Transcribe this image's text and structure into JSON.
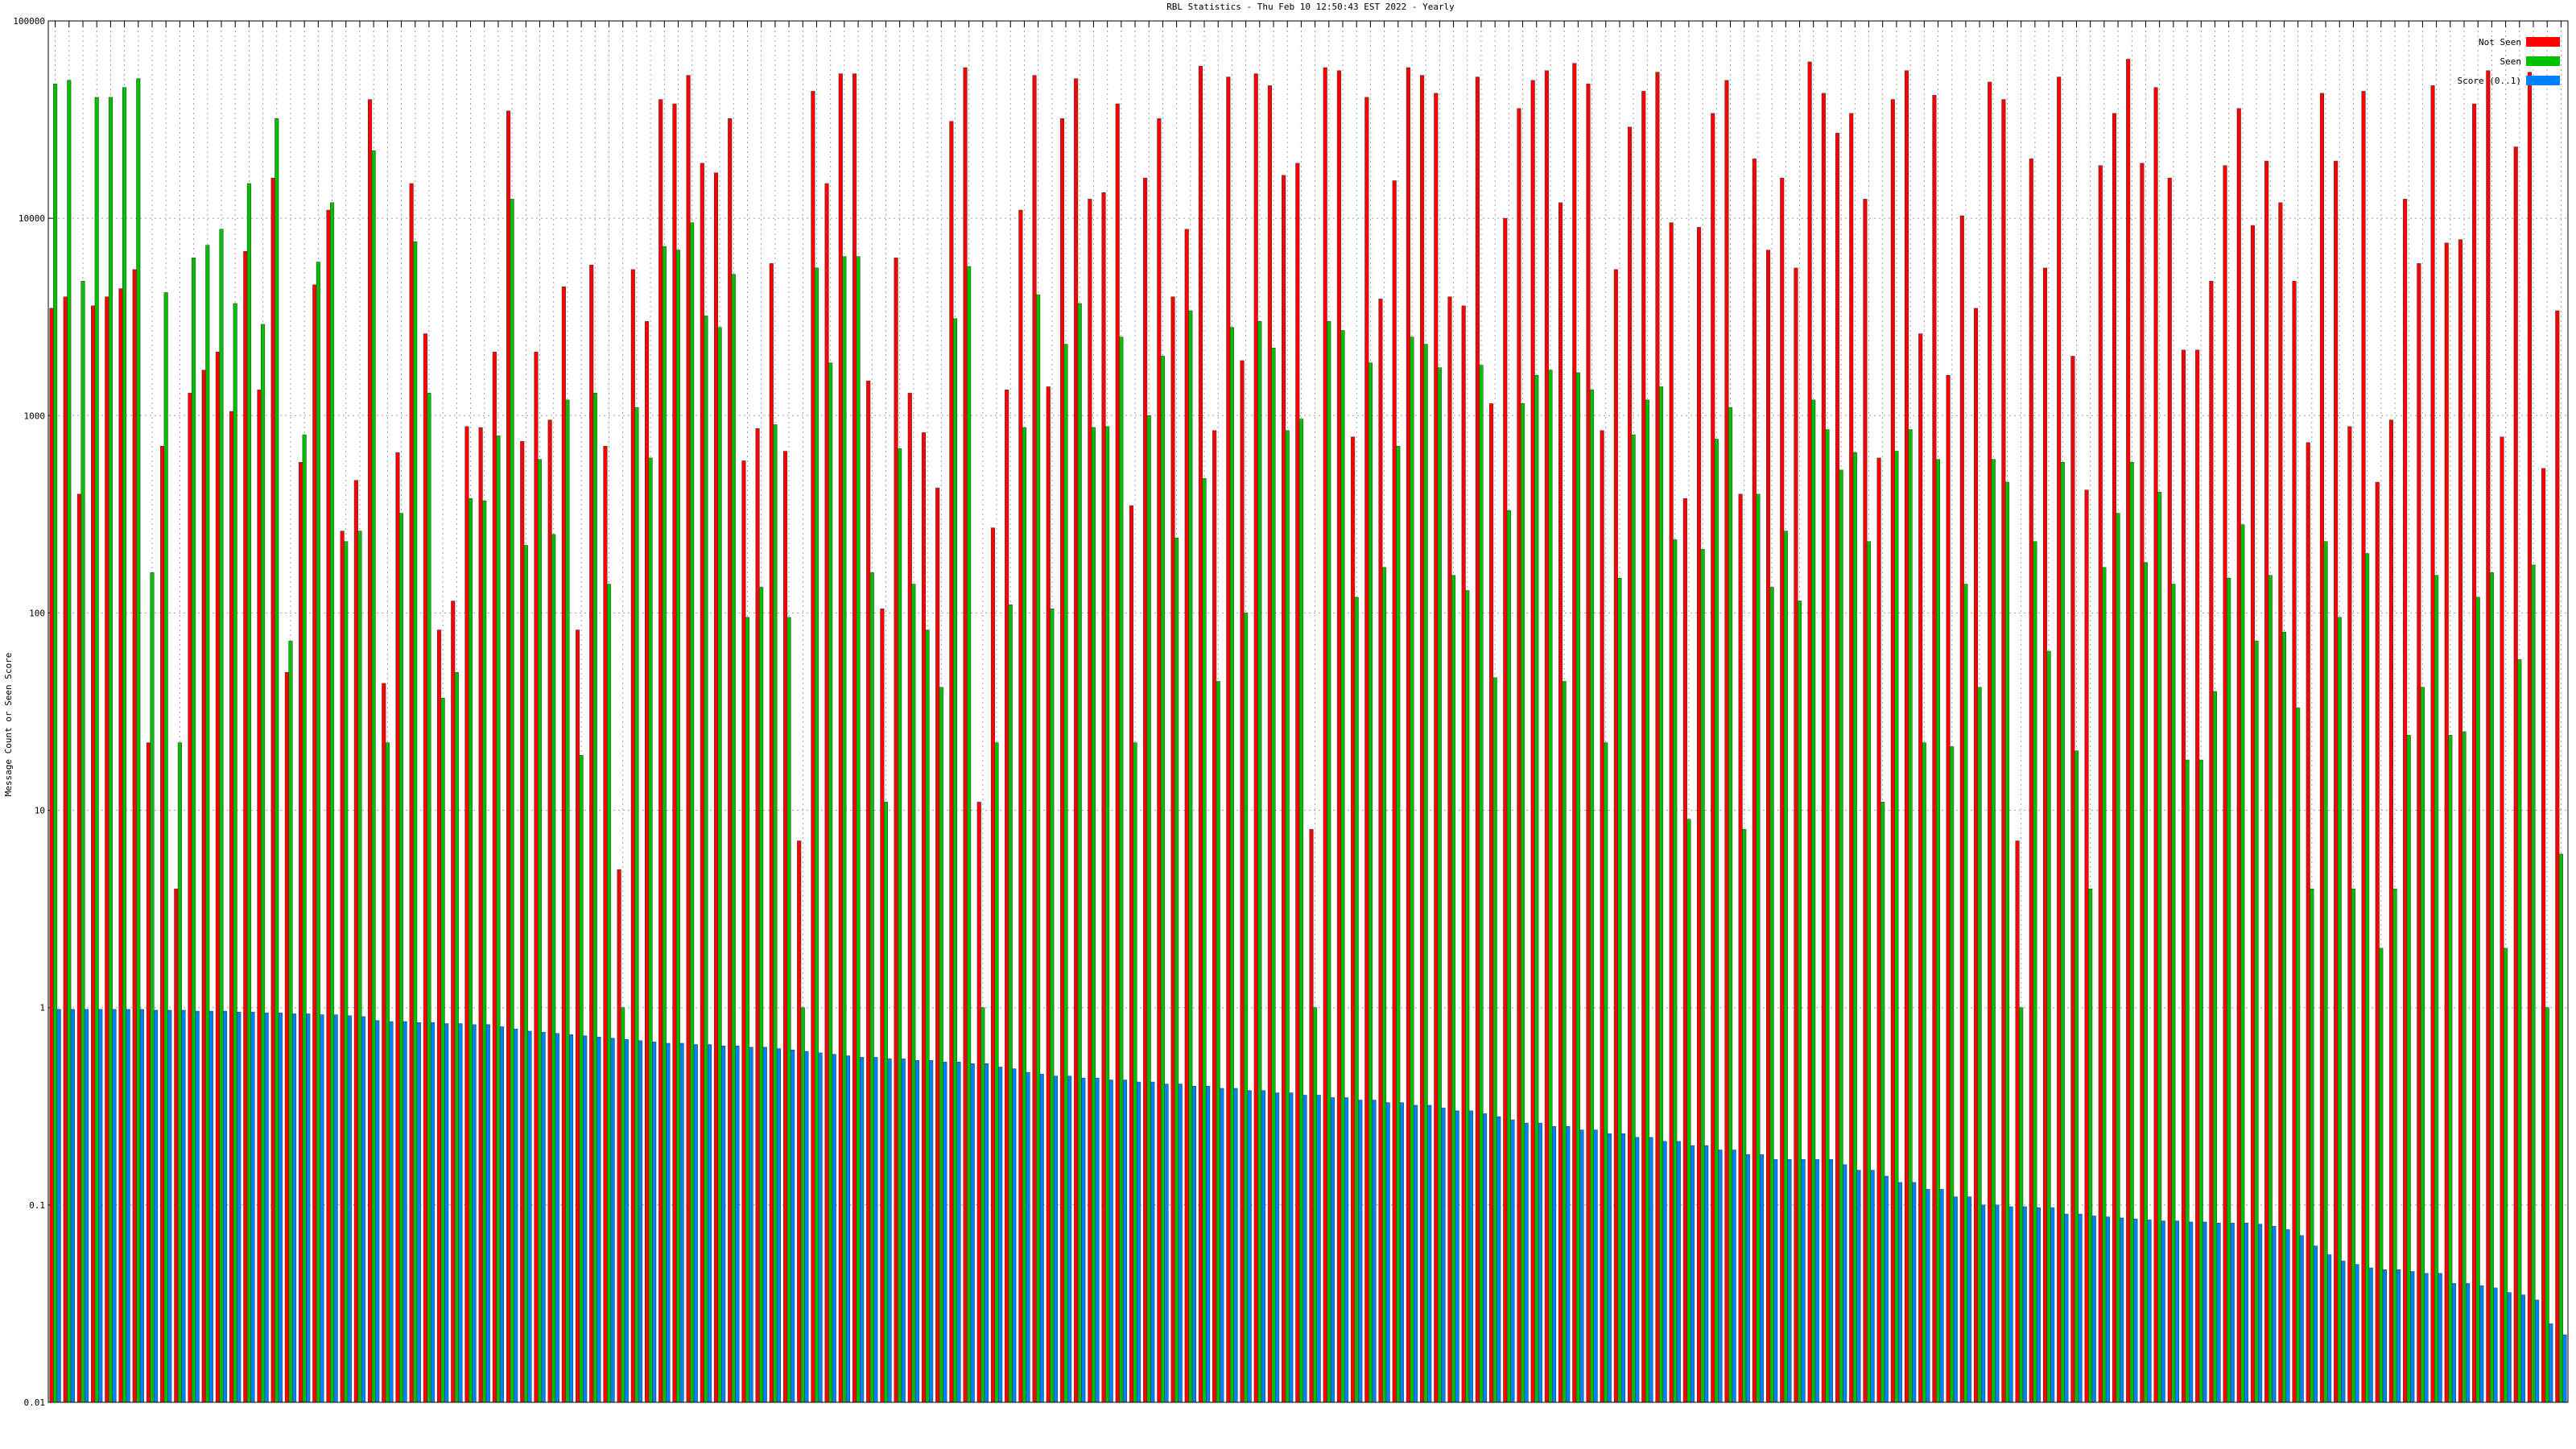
{
  "chart_data": {
    "type": "bar",
    "title": "RBL Statistics - Thu Feb 10 12:50:43 EST 2022 - Yearly",
    "y_label": "Message Count or Seen Score",
    "yscale": "log",
    "grid": true,
    "legend": "upper-right",
    "ylim": [
      0.01,
      100000
    ],
    "yticks": [
      0.01,
      0.1,
      1,
      10,
      100,
      1000,
      10000,
      100000
    ],
    "categories": [
      null,
      null,
      null,
      null,
      null,
      null,
      null,
      null,
      null,
      null,
      null,
      null,
      null,
      null,
      null,
      null,
      null,
      null,
      null,
      null,
      null,
      null,
      null,
      null,
      null,
      null,
      null,
      null,
      null,
      null,
      null,
      null,
      null,
      null,
      null,
      null,
      null,
      null,
      null,
      null,
      null,
      null,
      null,
      null,
      null,
      null,
      null,
      null,
      null,
      null,
      null,
      null,
      null,
      null,
      null,
      null,
      null,
      null,
      null,
      null,
      null,
      null,
      null,
      null,
      null,
      null,
      null,
      null,
      null,
      null,
      null,
      null,
      null,
      null,
      null,
      null,
      null,
      null,
      null,
      null,
      null,
      null,
      null,
      null,
      null,
      null,
      null,
      null,
      null,
      null,
      null,
      null,
      null,
      null,
      null,
      null,
      null,
      null,
      null,
      null,
      null,
      null,
      null,
      null,
      null,
      null,
      null,
      null,
      null,
      null,
      null,
      null,
      null,
      null,
      null,
      null,
      null,
      null,
      null,
      null,
      null,
      null,
      null,
      null,
      null,
      null,
      null,
      null,
      null,
      null,
      null,
      null,
      null,
      null,
      null,
      null,
      null,
      null,
      null,
      null,
      null,
      null,
      null,
      null,
      null,
      null,
      null,
      null,
      null,
      null,
      null,
      null,
      null,
      null,
      null,
      null,
      null,
      null,
      null,
      null,
      null,
      null,
      null,
      null,
      null,
      null,
      null,
      null,
      null,
      null,
      null,
      null,
      null,
      null,
      null,
      null,
      null,
      null,
      null,
      null,
      null,
      null
    ],
    "series": [
      {
        "name": "Not Seen",
        "color": "#ff0000",
        "values": [
          3500,
          4000,
          400,
          3600,
          4000,
          4400,
          5500,
          22,
          700,
          4,
          1300,
          1700,
          2100,
          1050,
          6800,
          1350,
          16000,
          50,
          580,
          4600,
          11000,
          260,
          470,
          40000,
          44,
          650,
          15000,
          2600,
          82,
          115,
          880,
          870,
          2100,
          35000,
          740,
          2100,
          950,
          4500,
          82,
          5800,
          700,
          5,
          5500,
          3000,
          40000,
          38000,
          53000,
          19000,
          17000,
          32000,
          590,
          860,
          5900,
          660,
          7,
          44000,
          15000,
          54000,
          54000,
          1500,
          105,
          6300,
          1300,
          820,
          430,
          31000,
          58000,
          11,
          270,
          1350,
          11000,
          53000,
          1400,
          32000,
          51000,
          12500,
          13500,
          38000,
          350,
          16000,
          32000,
          4000,
          8800,
          59000,
          840,
          52000,
          1900,
          54000,
          47000,
          16500,
          19000,
          8,
          58000,
          56000,
          780,
          41000,
          3900,
          15500,
          58000,
          53000,
          43000,
          4000,
          3600,
          52000,
          1150,
          10000,
          36000,
          50000,
          56000,
          12000,
          61000,
          48000,
          840,
          5500,
          29000,
          44000,
          55000,
          9500,
          380,
          9000,
          34000,
          50000,
          400,
          20000,
          6900,
          16000,
          5600,
          62000,
          43000,
          27000,
          34000,
          12500,
          610,
          40000,
          56000,
          2600,
          42000,
          1600,
          10300,
          3500,
          49000,
          40000,
          7,
          20000,
          5600,
          52000,
          2000,
          420,
          18500,
          34000,
          64000,
          19000,
          46000,
          16000,
          2150,
          2150,
          4800,
          18500,
          36000,
          9200,
          19500,
          12000,
          4800,
          730,
          43000,
          19500,
          880,
          44000,
          460,
          950,
          12500,
          5900,
          47000,
          7500,
          7800,
          38000,
          56000,
          780,
          23000,
          55000,
          540,
          3400
        ]
      },
      {
        "name": "Seen",
        "color": "#00c000",
        "values": [
          48000,
          50000,
          4800,
          41000,
          41000,
          46000,
          51000,
          160,
          4200,
          22,
          6300,
          7300,
          8800,
          3700,
          15000,
          2900,
          32000,
          72,
          800,
          6000,
          12000,
          230,
          260,
          22000,
          22,
          320,
          7600,
          1300,
          37,
          50,
          380,
          370,
          790,
          12500,
          220,
          600,
          250,
          1200,
          19,
          1300,
          140,
          1,
          1100,
          610,
          7200,
          6900,
          9500,
          3200,
          2800,
          5200,
          95,
          135,
          900,
          95,
          1,
          5600,
          1850,
          6400,
          6400,
          160,
          11,
          680,
          140,
          82,
          42,
          3100,
          5700,
          1,
          22,
          110,
          870,
          4100,
          105,
          2300,
          3700,
          870,
          880,
          2500,
          22,
          1000,
          2000,
          240,
          3400,
          480,
          45,
          2800,
          100,
          3000,
          2200,
          840,
          960,
          1,
          3000,
          2700,
          120,
          1850,
          170,
          700,
          2500,
          2300,
          1750,
          155,
          130,
          1800,
          47,
          330,
          1150,
          1600,
          1700,
          45,
          1650,
          1350,
          22,
          150,
          800,
          1200,
          1400,
          235,
          9,
          210,
          760,
          1100,
          8,
          400,
          135,
          260,
          115,
          1200,
          850,
          530,
          650,
          230,
          11,
          660,
          850,
          22,
          600,
          21,
          140,
          42,
          600,
          460,
          1,
          230,
          64,
          580,
          20,
          4,
          170,
          320,
          580,
          180,
          410,
          140,
          18,
          18,
          40,
          150,
          280,
          72,
          155,
          80,
          33,
          4,
          230,
          95,
          4,
          200,
          2,
          4,
          24,
          42,
          155,
          24,
          25,
          120,
          160,
          2,
          58,
          175,
          1,
          6
        ]
      },
      {
        "name": "Score (0..1)",
        "color": "#0080ff",
        "values": [
          0.98,
          0.98,
          0.98,
          0.98,
          0.98,
          0.98,
          0.98,
          0.97,
          0.97,
          0.97,
          0.96,
          0.96,
          0.96,
          0.95,
          0.95,
          0.94,
          0.94,
          0.93,
          0.93,
          0.92,
          0.92,
          0.91,
          0.9,
          0.86,
          0.85,
          0.85,
          0.84,
          0.84,
          0.83,
          0.83,
          0.82,
          0.82,
          0.8,
          0.78,
          0.76,
          0.75,
          0.74,
          0.73,
          0.72,
          0.71,
          0.7,
          0.69,
          0.68,
          0.67,
          0.66,
          0.66,
          0.65,
          0.65,
          0.64,
          0.64,
          0.63,
          0.63,
          0.62,
          0.61,
          0.6,
          0.59,
          0.58,
          0.57,
          0.56,
          0.56,
          0.55,
          0.55,
          0.54,
          0.54,
          0.53,
          0.53,
          0.52,
          0.52,
          0.5,
          0.49,
          0.47,
          0.46,
          0.45,
          0.45,
          0.44,
          0.44,
          0.43,
          0.43,
          0.42,
          0.42,
          0.41,
          0.41,
          0.4,
          0.4,
          0.39,
          0.39,
          0.38,
          0.38,
          0.37,
          0.37,
          0.36,
          0.36,
          0.35,
          0.35,
          0.34,
          0.34,
          0.33,
          0.33,
          0.32,
          0.32,
          0.31,
          0.3,
          0.3,
          0.29,
          0.28,
          0.27,
          0.26,
          0.26,
          0.25,
          0.25,
          0.24,
          0.24,
          0.23,
          0.23,
          0.22,
          0.22,
          0.21,
          0.21,
          0.2,
          0.2,
          0.19,
          0.19,
          0.18,
          0.18,
          0.17,
          0.17,
          0.17,
          0.17,
          0.17,
          0.16,
          0.15,
          0.15,
          0.14,
          0.13,
          0.13,
          0.12,
          0.12,
          0.11,
          0.11,
          0.1,
          0.1,
          0.098,
          0.098,
          0.097,
          0.097,
          0.09,
          0.09,
          0.088,
          0.087,
          0.086,
          0.085,
          0.084,
          0.083,
          0.083,
          0.082,
          0.082,
          0.081,
          0.081,
          0.081,
          0.08,
          0.078,
          0.075,
          0.07,
          0.062,
          0.056,
          0.052,
          0.05,
          0.048,
          0.047,
          0.047,
          0.046,
          0.045,
          0.045,
          0.04,
          0.04,
          0.039,
          0.038,
          0.036,
          0.035,
          0.033,
          0.025,
          0.022
        ]
      }
    ]
  }
}
